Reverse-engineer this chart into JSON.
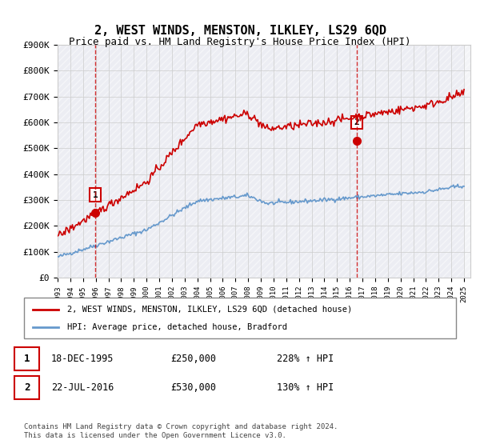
{
  "title": "2, WEST WINDS, MENSTON, ILKLEY, LS29 6QD",
  "subtitle": "Price paid vs. HM Land Registry's House Price Index (HPI)",
  "ylim": [
    0,
    900000
  ],
  "yticks": [
    0,
    100000,
    200000,
    300000,
    400000,
    500000,
    600000,
    700000,
    800000,
    900000
  ],
  "ytick_labels": [
    "£0",
    "£100K",
    "£200K",
    "£300K",
    "£400K",
    "£500K",
    "£600K",
    "£700K",
    "£800K",
    "£900K"
  ],
  "sale1_date": 1995.96,
  "sale1_price": 250000,
  "sale1_label": "1",
  "sale2_date": 2016.55,
  "sale2_price": 530000,
  "sale2_label": "2",
  "property_line_color": "#cc0000",
  "hpi_line_color": "#6699cc",
  "vline_color": "#cc0000",
  "dot_color": "#cc0000",
  "bg_hatch_color": "#e8e8f0",
  "grid_color": "#cccccc",
  "legend_property": "2, WEST WINDS, MENSTON, ILKLEY, LS29 6QD (detached house)",
  "legend_hpi": "HPI: Average price, detached house, Bradford",
  "table_row1": [
    "1",
    "18-DEC-1995",
    "£250,000",
    "228% ↑ HPI"
  ],
  "table_row2": [
    "2",
    "22-JUL-2016",
    "£530,000",
    "130% ↑ HPI"
  ],
  "footer": "Contains HM Land Registry data © Crown copyright and database right 2024.\nThis data is licensed under the Open Government Licence v3.0.",
  "title_fontsize": 11,
  "subtitle_fontsize": 9,
  "axis_fontsize": 8
}
